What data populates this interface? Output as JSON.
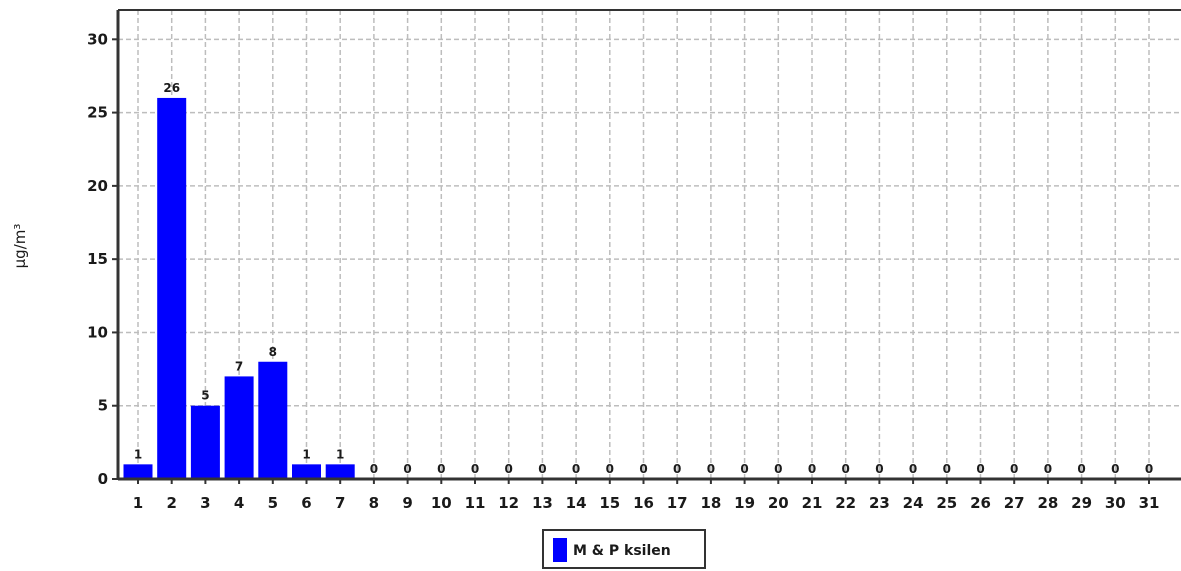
{
  "chart_data": {
    "type": "bar",
    "title": "",
    "xlabel": "",
    "ylabel": "µg/m³",
    "ylim": [
      0,
      32
    ],
    "yticks": [
      0,
      5,
      10,
      15,
      20,
      25,
      30
    ],
    "grid": true,
    "legend_position": "bottom-center",
    "categories": [
      "1",
      "2",
      "3",
      "4",
      "5",
      "6",
      "7",
      "8",
      "9",
      "10",
      "11",
      "12",
      "13",
      "14",
      "15",
      "16",
      "17",
      "18",
      "19",
      "20",
      "21",
      "22",
      "23",
      "24",
      "25",
      "26",
      "27",
      "28",
      "29",
      "30",
      "31"
    ],
    "series": [
      {
        "name": "M & P ksilen",
        "color": "#0000ff",
        "values": [
          1,
          26,
          5,
          7,
          8,
          1,
          1,
          0,
          0,
          0,
          0,
          0,
          0,
          0,
          0,
          0,
          0,
          0,
          0,
          0,
          0,
          0,
          0,
          0,
          0,
          0,
          0,
          0,
          0,
          0,
          0
        ]
      }
    ]
  }
}
